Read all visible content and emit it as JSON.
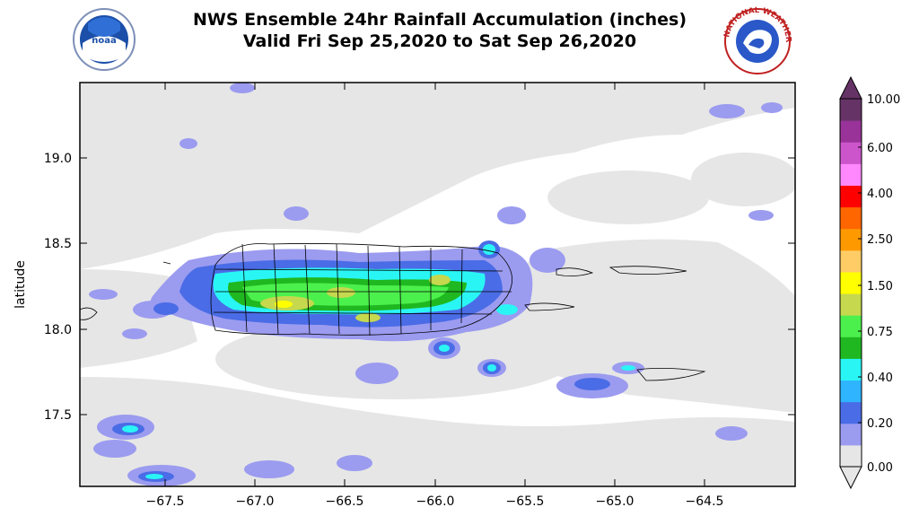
{
  "header": {
    "title_line1": "NWS Ensemble 24hr Rainfall Accumulation (inches)",
    "title_line2": "Valid Fri Sep 25,2020 to Sat Sep 26,2020",
    "left_logo_text": "noaa",
    "right_logo_text": "NATIONAL WEATHER SERVICE"
  },
  "map": {
    "ylabel": "latitude",
    "x_ticks": [
      "−67.5",
      "−67.0",
      "−66.5",
      "−66.0",
      "−65.5",
      "−65.0",
      "−64.5"
    ],
    "y_ticks": [
      "19.0",
      "18.5",
      "18.0",
      "17.5"
    ],
    "background_color": "#e6e6e6"
  },
  "colorbar": {
    "labels": [
      "10.00",
      "6.00",
      "4.00",
      "2.50",
      "1.50",
      "0.75",
      "0.40",
      "0.20",
      "0.00"
    ],
    "colors": [
      "#e6e6e6",
      "#9b9bf0",
      "#4a6ce6",
      "#2fb4ff",
      "#2af5f5",
      "#20b820",
      "#4cf04c",
      "#c6d84e",
      "#ffff00",
      "#ffcc66",
      "#ff9900",
      "#ff6600",
      "#ff0000",
      "#ff88ff",
      "#cc55cc",
      "#993399",
      "#663366"
    ]
  }
}
